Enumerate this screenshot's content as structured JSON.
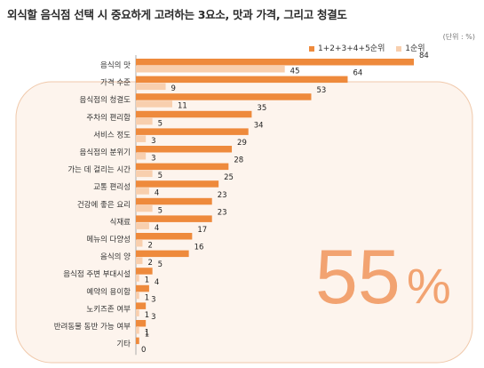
{
  "chart_data": {
    "type": "bar",
    "orientation": "horizontal",
    "title": "외식할 음식점 선택 시 중요하게 고려하는 3요소, 맛과 가격, 그리고 청결도",
    "unit_note": "(단위 : %)",
    "categories": [
      "음식의 맛",
      "가격 수준",
      "음식점의 청결도",
      "주차의 편리함",
      "서비스 정도",
      "음식점의 분위기",
      "가는 데 걸리는 시간",
      "교통 편리성",
      "건강에 좋은 요리",
      "식재료",
      "메뉴의 다양성",
      "음식의 양",
      "음식점 주변 부대시설",
      "예약의 용이함",
      "노키즈존 여부",
      "반려동물 동반 가능 여부",
      "기타"
    ],
    "series": [
      {
        "name": "1+2+3+4+5순위",
        "color": "#ee8a3c",
        "values": [
          84,
          64,
          53,
          35,
          34,
          29,
          28,
          25,
          23,
          23,
          17,
          16,
          5,
          4,
          3,
          3,
          1
        ]
      },
      {
        "name": "1순위",
        "color": "#f8cfae",
        "values": [
          45,
          9,
          11,
          5,
          3,
          3,
          5,
          4,
          5,
          4,
          2,
          2,
          1,
          1,
          1,
          1,
          0
        ]
      }
    ],
    "xlim": [
      0,
      100
    ],
    "legend_position": "top-right",
    "highlight_text": "55",
    "highlight_suffix": "%",
    "highlight_color": "#f2a371",
    "panel_color": "#fdf4ed"
  }
}
